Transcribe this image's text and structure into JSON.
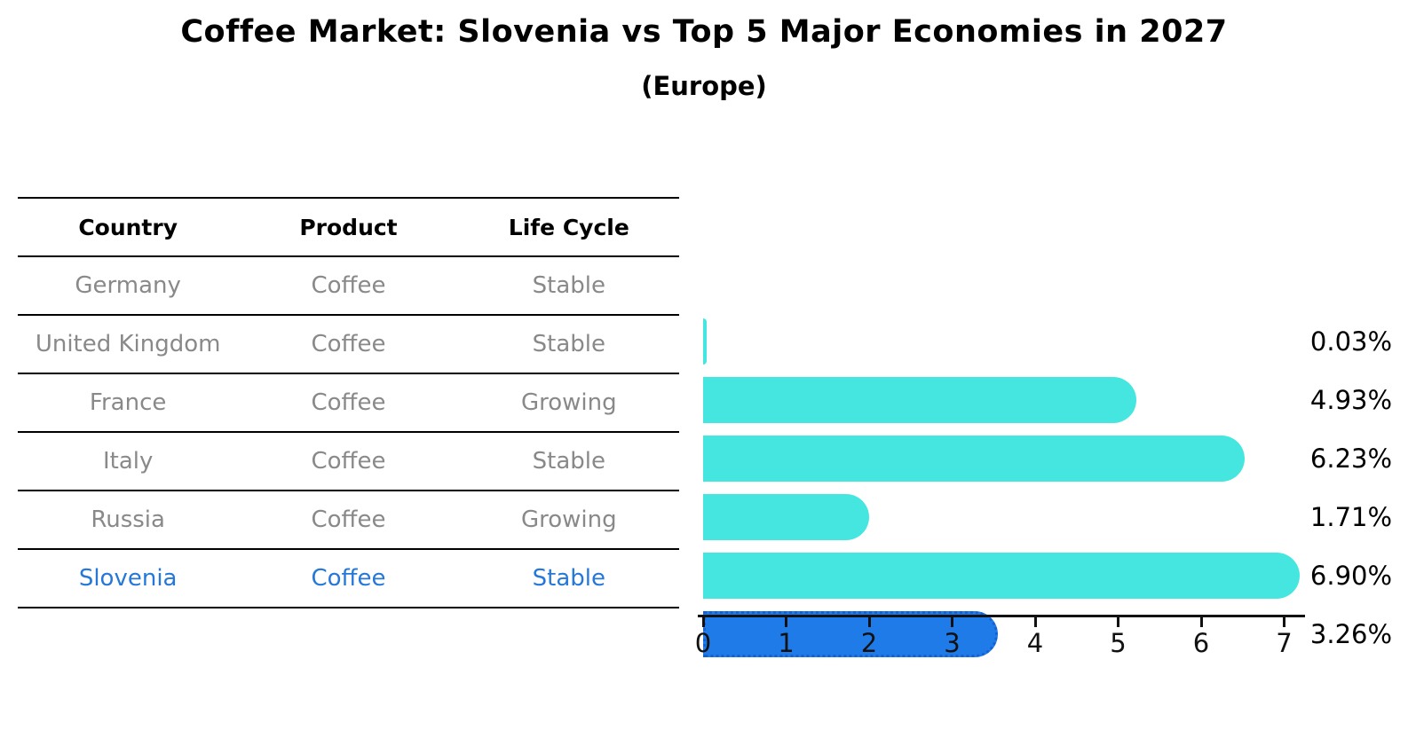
{
  "title": "Coffee Market: Slovenia vs Top 5 Major Economies in 2027",
  "subtitle": "(Europe)",
  "table": {
    "headers": [
      "Country",
      "Product",
      "Life Cycle"
    ],
    "rows": [
      {
        "country": "Germany",
        "product": "Coffee",
        "life_cycle": "Stable"
      },
      {
        "country": "United Kingdom",
        "product": "Coffee",
        "life_cycle": "Stable"
      },
      {
        "country": "France",
        "product": "Coffee",
        "life_cycle": "Growing"
      },
      {
        "country": "Italy",
        "product": "Coffee",
        "life_cycle": "Stable"
      },
      {
        "country": "Russia",
        "product": "Coffee",
        "life_cycle": "Growing"
      },
      {
        "country": "Slovenia",
        "product": "Coffee",
        "life_cycle": "Stable"
      }
    ],
    "highlighted_country": "Slovenia"
  },
  "chart_data": {
    "type": "bar",
    "orientation": "horizontal",
    "categories": [
      "Germany",
      "United Kingdom",
      "France",
      "Italy",
      "Russia",
      "Slovenia"
    ],
    "values": [
      0.03,
      4.93,
      6.23,
      1.71,
      6.9,
      3.26
    ],
    "value_labels": [
      "0.03%",
      "4.93%",
      "6.23%",
      "1.71%",
      "6.90%",
      "3.26%"
    ],
    "x_ticks": [
      "0",
      "1",
      "2",
      "3",
      "4",
      "5",
      "6",
      "7"
    ],
    "xlim": [
      0,
      7.3
    ],
    "grid": false,
    "legend": "none",
    "bar_color": "#45E6E0",
    "highlight_color": "#1F7BE8",
    "highlight_border_color": "#1461D4",
    "highlight_index": 5
  },
  "colors": {
    "table_text": "#898989",
    "header_text": "#000000",
    "highlight_text": "#2578D8",
    "axis": "#111111"
  }
}
